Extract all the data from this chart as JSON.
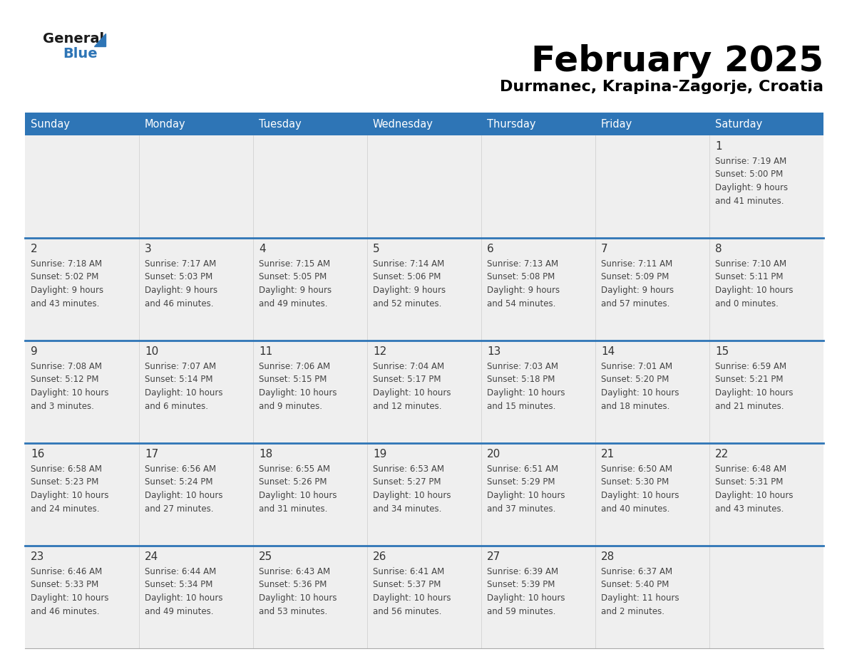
{
  "title": "February 2025",
  "subtitle": "Durmanec, Krapina-Zagorje, Croatia",
  "days_of_week": [
    "Sunday",
    "Monday",
    "Tuesday",
    "Wednesday",
    "Thursday",
    "Friday",
    "Saturday"
  ],
  "header_bg": "#2E75B6",
  "header_text": "#FFFFFF",
  "row_divider_color": "#2E75B6",
  "text_color": "#444444",
  "day_num_color": "#333333",
  "logo_general_color": "#1a1a1a",
  "logo_blue_color": "#2E75B6",
  "cell_bg": "#EFEFEF",
  "weeks": [
    [
      {
        "day": null,
        "info": null
      },
      {
        "day": null,
        "info": null
      },
      {
        "day": null,
        "info": null
      },
      {
        "day": null,
        "info": null
      },
      {
        "day": null,
        "info": null
      },
      {
        "day": null,
        "info": null
      },
      {
        "day": 1,
        "info": "Sunrise: 7:19 AM\nSunset: 5:00 PM\nDaylight: 9 hours\nand 41 minutes."
      }
    ],
    [
      {
        "day": 2,
        "info": "Sunrise: 7:18 AM\nSunset: 5:02 PM\nDaylight: 9 hours\nand 43 minutes."
      },
      {
        "day": 3,
        "info": "Sunrise: 7:17 AM\nSunset: 5:03 PM\nDaylight: 9 hours\nand 46 minutes."
      },
      {
        "day": 4,
        "info": "Sunrise: 7:15 AM\nSunset: 5:05 PM\nDaylight: 9 hours\nand 49 minutes."
      },
      {
        "day": 5,
        "info": "Sunrise: 7:14 AM\nSunset: 5:06 PM\nDaylight: 9 hours\nand 52 minutes."
      },
      {
        "day": 6,
        "info": "Sunrise: 7:13 AM\nSunset: 5:08 PM\nDaylight: 9 hours\nand 54 minutes."
      },
      {
        "day": 7,
        "info": "Sunrise: 7:11 AM\nSunset: 5:09 PM\nDaylight: 9 hours\nand 57 minutes."
      },
      {
        "day": 8,
        "info": "Sunrise: 7:10 AM\nSunset: 5:11 PM\nDaylight: 10 hours\nand 0 minutes."
      }
    ],
    [
      {
        "day": 9,
        "info": "Sunrise: 7:08 AM\nSunset: 5:12 PM\nDaylight: 10 hours\nand 3 minutes."
      },
      {
        "day": 10,
        "info": "Sunrise: 7:07 AM\nSunset: 5:14 PM\nDaylight: 10 hours\nand 6 minutes."
      },
      {
        "day": 11,
        "info": "Sunrise: 7:06 AM\nSunset: 5:15 PM\nDaylight: 10 hours\nand 9 minutes."
      },
      {
        "day": 12,
        "info": "Sunrise: 7:04 AM\nSunset: 5:17 PM\nDaylight: 10 hours\nand 12 minutes."
      },
      {
        "day": 13,
        "info": "Sunrise: 7:03 AM\nSunset: 5:18 PM\nDaylight: 10 hours\nand 15 minutes."
      },
      {
        "day": 14,
        "info": "Sunrise: 7:01 AM\nSunset: 5:20 PM\nDaylight: 10 hours\nand 18 minutes."
      },
      {
        "day": 15,
        "info": "Sunrise: 6:59 AM\nSunset: 5:21 PM\nDaylight: 10 hours\nand 21 minutes."
      }
    ],
    [
      {
        "day": 16,
        "info": "Sunrise: 6:58 AM\nSunset: 5:23 PM\nDaylight: 10 hours\nand 24 minutes."
      },
      {
        "day": 17,
        "info": "Sunrise: 6:56 AM\nSunset: 5:24 PM\nDaylight: 10 hours\nand 27 minutes."
      },
      {
        "day": 18,
        "info": "Sunrise: 6:55 AM\nSunset: 5:26 PM\nDaylight: 10 hours\nand 31 minutes."
      },
      {
        "day": 19,
        "info": "Sunrise: 6:53 AM\nSunset: 5:27 PM\nDaylight: 10 hours\nand 34 minutes."
      },
      {
        "day": 20,
        "info": "Sunrise: 6:51 AM\nSunset: 5:29 PM\nDaylight: 10 hours\nand 37 minutes."
      },
      {
        "day": 21,
        "info": "Sunrise: 6:50 AM\nSunset: 5:30 PM\nDaylight: 10 hours\nand 40 minutes."
      },
      {
        "day": 22,
        "info": "Sunrise: 6:48 AM\nSunset: 5:31 PM\nDaylight: 10 hours\nand 43 minutes."
      }
    ],
    [
      {
        "day": 23,
        "info": "Sunrise: 6:46 AM\nSunset: 5:33 PM\nDaylight: 10 hours\nand 46 minutes."
      },
      {
        "day": 24,
        "info": "Sunrise: 6:44 AM\nSunset: 5:34 PM\nDaylight: 10 hours\nand 49 minutes."
      },
      {
        "day": 25,
        "info": "Sunrise: 6:43 AM\nSunset: 5:36 PM\nDaylight: 10 hours\nand 53 minutes."
      },
      {
        "day": 26,
        "info": "Sunrise: 6:41 AM\nSunset: 5:37 PM\nDaylight: 10 hours\nand 56 minutes."
      },
      {
        "day": 27,
        "info": "Sunrise: 6:39 AM\nSunset: 5:39 PM\nDaylight: 10 hours\nand 59 minutes."
      },
      {
        "day": 28,
        "info": "Sunrise: 6:37 AM\nSunset: 5:40 PM\nDaylight: 11 hours\nand 2 minutes."
      },
      {
        "day": null,
        "info": null
      }
    ]
  ]
}
